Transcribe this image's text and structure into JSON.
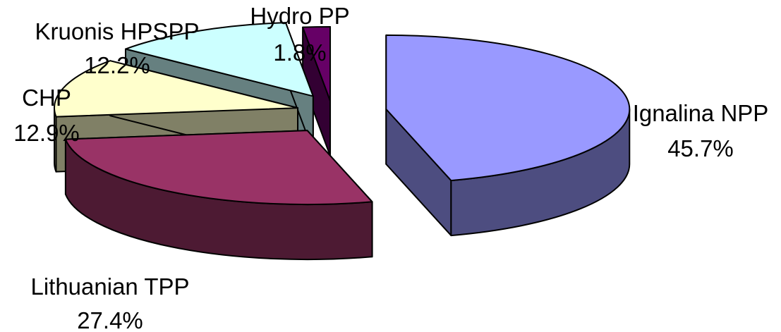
{
  "chart_data": {
    "type": "pie",
    "variant": "exploded-3d",
    "title": "",
    "slices": [
      {
        "name": "Ignalina NPP",
        "value": 45.7,
        "percent_label": "45.7%",
        "color_top": "#9999ff",
        "color_side": "#4d4d80"
      },
      {
        "name": "Lithuanian TPP",
        "value": 27.4,
        "percent_label": "27.4%",
        "color_top": "#993366",
        "color_side": "#4d1a33"
      },
      {
        "name": "CHP",
        "value": 12.9,
        "percent_label": "12.9%",
        "color_top": "#ffffcc",
        "color_side": "#808066"
      },
      {
        "name": "Kruonis HPSPP",
        "value": 12.2,
        "percent_label": "12.2%",
        "color_top": "#ccffff",
        "color_side": "#668080"
      },
      {
        "name": "Hydro PP",
        "value": 1.8,
        "percent_label": "1.8%",
        "color_top": "#660066",
        "color_side": "#330033"
      }
    ]
  }
}
